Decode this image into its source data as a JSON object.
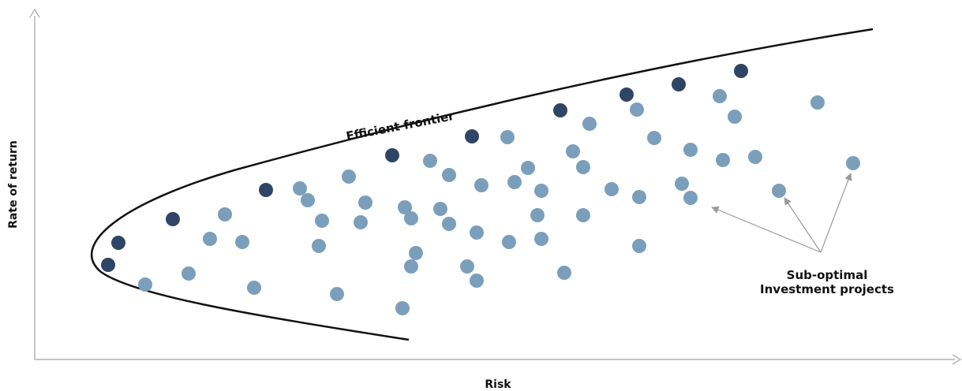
{
  "labels": {
    "y_axis": "Rate of return",
    "x_axis": "Risk",
    "frontier": "Efficient frontier",
    "annotation_line1": "Sub-optimal",
    "annotation_line2": "Investment projects"
  },
  "colors": {
    "optimal": "#2f4566",
    "suboptimal": "#7b9fbb",
    "axis": "#b4b4b4",
    "curve": "#111111",
    "arrow": "#9a9a9a"
  },
  "optimal_points": [
    [
      137,
      336
    ],
    [
      150,
      308
    ],
    [
      219,
      278
    ],
    [
      337,
      241
    ],
    [
      497,
      197
    ],
    [
      598,
      173
    ],
    [
      710,
      140
    ],
    [
      794,
      120
    ],
    [
      860,
      107
    ],
    [
      939,
      90
    ]
  ],
  "suboptimal_points": [
    [
      184,
      361
    ],
    [
      239,
      347
    ],
    [
      266,
      303
    ],
    [
      285,
      272
    ],
    [
      307,
      307
    ],
    [
      322,
      365
    ],
    [
      380,
      239
    ],
    [
      390,
      254
    ],
    [
      404,
      312
    ],
    [
      408,
      280
    ],
    [
      427,
      373
    ],
    [
      442,
      224
    ],
    [
      457,
      282
    ],
    [
      463,
      257
    ],
    [
      510,
      391
    ],
    [
      513,
      263
    ],
    [
      521,
      277
    ],
    [
      521,
      338
    ],
    [
      527,
      321
    ],
    [
      545,
      204
    ],
    [
      558,
      265
    ],
    [
      569,
      222
    ],
    [
      569,
      284
    ],
    [
      592,
      338
    ],
    [
      604,
      295
    ],
    [
      604,
      356
    ],
    [
      610,
      235
    ],
    [
      643,
      174
    ],
    [
      645,
      307
    ],
    [
      652,
      231
    ],
    [
      669,
      213
    ],
    [
      681,
      273
    ],
    [
      686,
      242
    ],
    [
      686,
      303
    ],
    [
      715,
      346
    ],
    [
      726,
      192
    ],
    [
      739,
      212
    ],
    [
      739,
      273
    ],
    [
      747,
      157
    ],
    [
      775,
      240
    ],
    [
      807,
      139
    ],
    [
      810,
      250
    ],
    [
      810,
      312
    ],
    [
      829,
      175
    ],
    [
      864,
      233
    ],
    [
      875,
      190
    ],
    [
      875,
      251
    ],
    [
      912,
      122
    ],
    [
      916,
      203
    ],
    [
      931,
      148
    ],
    [
      957,
      199
    ],
    [
      987,
      242
    ],
    [
      1036,
      130
    ],
    [
      1081,
      207
    ]
  ]
}
